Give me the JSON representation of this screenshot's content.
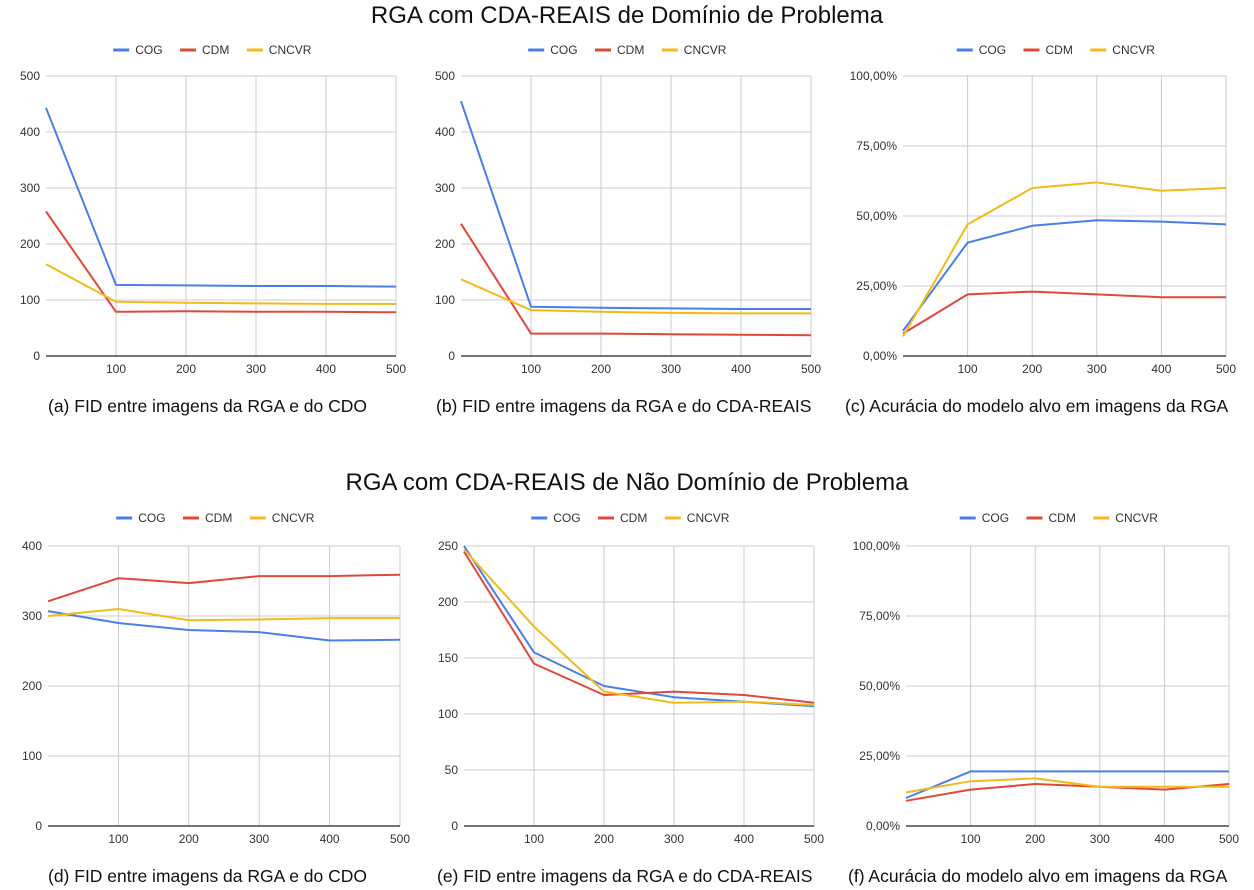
{
  "titles": {
    "top": "RGA com CDA-REAIS de Domínio de Problema",
    "bottom": "RGA com CDA-REAIS de Não Domínio de Problema"
  },
  "colors": {
    "COG": "#4a7fe8",
    "CDM": "#e2483a",
    "CNCVR": "#f4b91a",
    "grid": "#cccccc",
    "axis": "#222222"
  },
  "chart_data": [
    {
      "id": "a",
      "type": "line",
      "caption": "(a) FID entre imagens da RGA e do CDO",
      "legend": [
        "COG",
        "CDM",
        "CNCVR"
      ],
      "legend_position": "top-center",
      "x": [
        0,
        100,
        200,
        300,
        400,
        500
      ],
      "x_tick_labels": [
        "100",
        "200",
        "300",
        "400",
        "500"
      ],
      "ylim": [
        0,
        500
      ],
      "y_ticks": [
        0,
        100,
        200,
        300,
        400,
        500
      ],
      "y_tick_labels": [
        "0",
        "100",
        "200",
        "300",
        "400",
        "500"
      ],
      "series": [
        {
          "name": "COG",
          "values": [
            443,
            127,
            126,
            125,
            125,
            124
          ]
        },
        {
          "name": "CDM",
          "values": [
            258,
            79,
            80,
            79,
            79,
            78
          ]
        },
        {
          "name": "CNCVR",
          "values": [
            164,
            97,
            95,
            94,
            93,
            93
          ]
        }
      ]
    },
    {
      "id": "b",
      "type": "line",
      "caption": "(b) FID entre imagens da RGA e do CDA-REAIS",
      "legend": [
        "COG",
        "CDM",
        "CNCVR"
      ],
      "legend_position": "top-center",
      "x": [
        0,
        100,
        200,
        300,
        400,
        500
      ],
      "x_tick_labels": [
        "100",
        "200",
        "300",
        "400",
        "500"
      ],
      "ylim": [
        0,
        500
      ],
      "y_ticks": [
        0,
        100,
        200,
        300,
        400,
        500
      ],
      "y_tick_labels": [
        "0",
        "100",
        "200",
        "300",
        "400",
        "500"
      ],
      "series": [
        {
          "name": "COG",
          "values": [
            455,
            88,
            86,
            85,
            84,
            84
          ]
        },
        {
          "name": "CDM",
          "values": [
            236,
            40,
            40,
            39,
            38,
            37
          ]
        },
        {
          "name": "CNCVR",
          "values": [
            137,
            82,
            79,
            77,
            76,
            76
          ]
        }
      ]
    },
    {
      "id": "c",
      "type": "line",
      "caption": "(c) Acurácia do modelo alvo em imagens da RGA",
      "legend": [
        "COG",
        "CDM",
        "CNCVR"
      ],
      "legend_position": "top-center",
      "x": [
        0,
        100,
        200,
        300,
        400,
        500
      ],
      "x_tick_labels": [
        "100",
        "200",
        "300",
        "400",
        "500"
      ],
      "ylim": [
        0,
        100
      ],
      "y_ticks": [
        0,
        25,
        50,
        75,
        100
      ],
      "y_tick_labels": [
        "0,00%",
        "25,00%",
        "50,00%",
        "75,00%",
        "100,00%"
      ],
      "series": [
        {
          "name": "COG",
          "values": [
            9,
            40.5,
            46.5,
            48.5,
            48,
            47
          ]
        },
        {
          "name": "CDM",
          "values": [
            8,
            22,
            23,
            22,
            21,
            21
          ]
        },
        {
          "name": "CNCVR",
          "values": [
            7,
            47,
            60,
            62,
            59,
            60
          ]
        }
      ]
    },
    {
      "id": "d",
      "type": "line",
      "caption": "(d) FID entre imagens da RGA e do CDO",
      "legend": [
        "COG",
        "CDM",
        "CNCVR"
      ],
      "legend_position": "top-center",
      "x": [
        0,
        100,
        200,
        300,
        400,
        500
      ],
      "x_tick_labels": [
        "100",
        "200",
        "300",
        "400",
        "500"
      ],
      "ylim": [
        0,
        400
      ],
      "y_ticks": [
        0,
        100,
        200,
        300,
        400
      ],
      "y_tick_labels": [
        "0",
        "100",
        "200",
        "300",
        "400"
      ],
      "series": [
        {
          "name": "COG",
          "values": [
            307,
            290,
            280,
            277,
            265,
            266
          ]
        },
        {
          "name": "CDM",
          "values": [
            321,
            354,
            347,
            357,
            357,
            359
          ]
        },
        {
          "name": "CNCVR",
          "values": [
            300,
            310,
            294,
            295,
            297,
            297
          ]
        }
      ]
    },
    {
      "id": "e",
      "type": "line",
      "caption": "(e) FID entre imagens da RGA e do CDA-REAIS",
      "legend": [
        "COG",
        "CDM",
        "CNCVR"
      ],
      "legend_position": "top-center",
      "x": [
        0,
        100,
        200,
        300,
        400,
        500
      ],
      "x_tick_labels": [
        "100",
        "200",
        "300",
        "400",
        "500"
      ],
      "ylim": [
        0,
        250
      ],
      "y_ticks": [
        0,
        50,
        100,
        150,
        200,
        250
      ],
      "y_tick_labels": [
        "0",
        "50",
        "100",
        "150",
        "200",
        "250"
      ],
      "series": [
        {
          "name": "COG",
          "values": [
            250,
            155,
            125,
            115,
            111,
            107
          ]
        },
        {
          "name": "CDM",
          "values": [
            245,
            145,
            117,
            120,
            117,
            110
          ]
        },
        {
          "name": "CNCVR",
          "values": [
            247,
            178,
            120,
            110,
            111,
            108
          ]
        }
      ]
    },
    {
      "id": "f",
      "type": "line",
      "caption": "(f) Acurácia do modelo alvo em imagens da RGA",
      "legend": [
        "COG",
        "CDM",
        "CNCVR"
      ],
      "legend_position": "top-center",
      "x": [
        0,
        100,
        200,
        300,
        400,
        500
      ],
      "x_tick_labels": [
        "100",
        "200",
        "300",
        "400",
        "500"
      ],
      "ylim": [
        0,
        100
      ],
      "y_ticks": [
        0,
        25,
        50,
        75,
        100
      ],
      "y_tick_labels": [
        "0,00%",
        "25,00%",
        "50,00%",
        "75,00%",
        "100,00%"
      ],
      "series": [
        {
          "name": "COG",
          "values": [
            10,
            19.5,
            19.5,
            19.5,
            19.5,
            19.5
          ]
        },
        {
          "name": "CDM",
          "values": [
            9,
            13,
            15,
            14,
            13,
            15
          ]
        },
        {
          "name": "CNCVR",
          "values": [
            12,
            16,
            17,
            14,
            14,
            14
          ]
        }
      ]
    }
  ]
}
